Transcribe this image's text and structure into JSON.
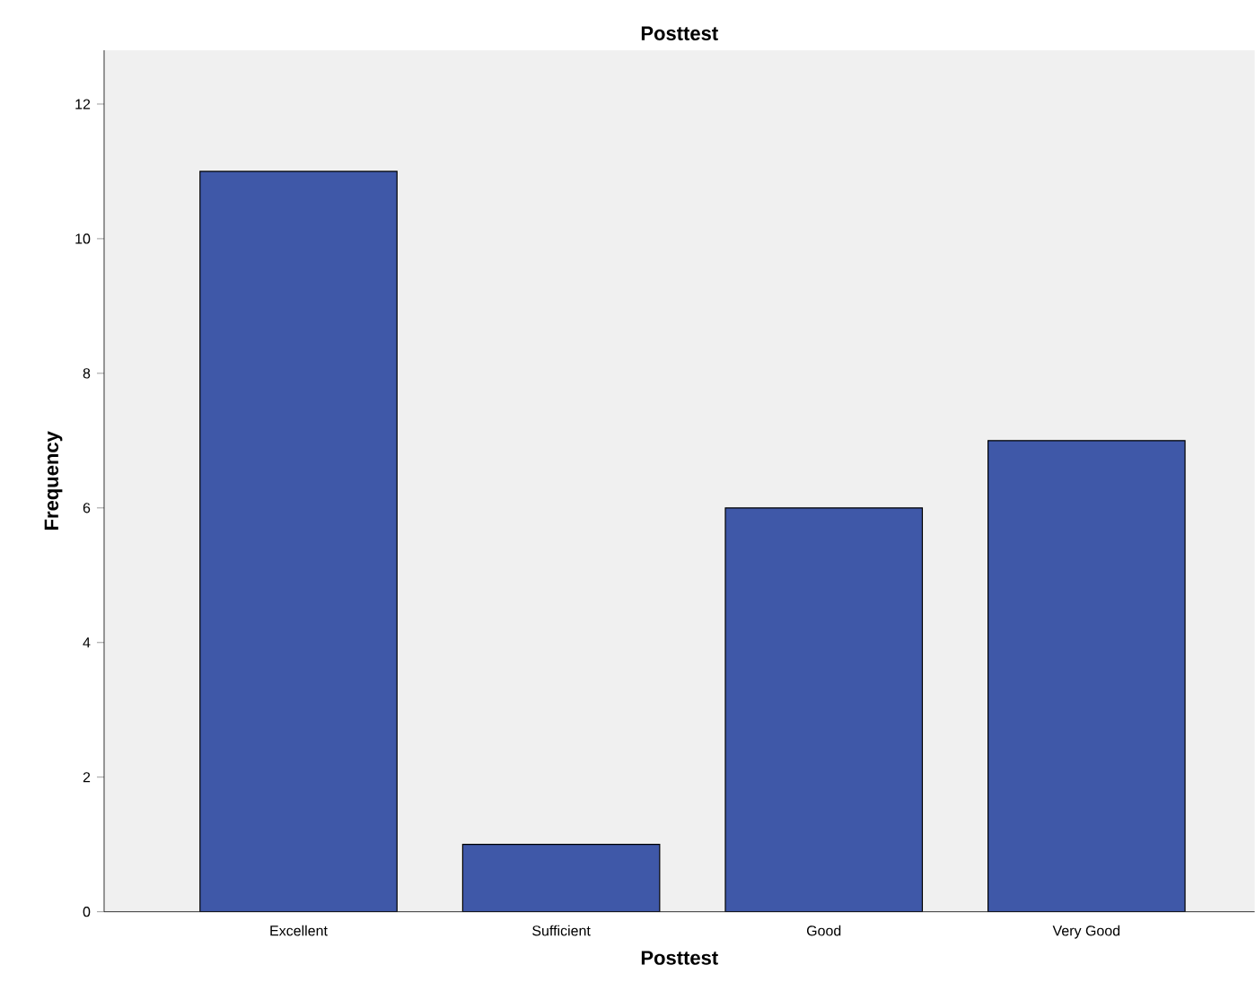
{
  "chart_data": {
    "type": "bar",
    "title": "Posttest",
    "xlabel": "Posttest",
    "ylabel": "Frequency",
    "categories": [
      "Excellent",
      "Sufficient",
      "Good",
      "Very Good"
    ],
    "values": [
      11,
      1,
      6,
      7
    ],
    "color": "#3f58a8",
    "ylim": [
      0,
      12.8
    ],
    "yticks": [
      0,
      2,
      4,
      6,
      8,
      10,
      12
    ],
    "grid": false
  }
}
